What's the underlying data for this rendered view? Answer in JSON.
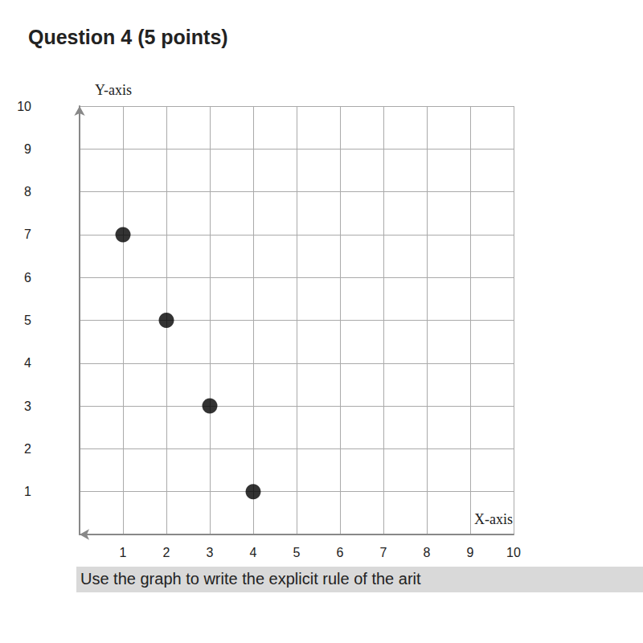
{
  "chart_data": {
    "type": "scatter",
    "title": "Question 4 (5 points)",
    "x_label": "X-axis",
    "y_label": "Y-axis",
    "annotation": "Use the graph to write the explicit rule of the arit",
    "x": [
      1,
      2,
      3,
      4
    ],
    "values": [
      7,
      5,
      3,
      1
    ],
    "color": "#000000",
    "marker": "circle",
    "xlim": [
      0,
      10
    ],
    "xticks": [
      1,
      2,
      3,
      4,
      5,
      6,
      7,
      8,
      9,
      10
    ],
    "ylim": [
      0,
      10
    ],
    "yticks": [
      1,
      2,
      3,
      4,
      5,
      6,
      7,
      8,
      9,
      10
    ],
    "grid": true
  }
}
